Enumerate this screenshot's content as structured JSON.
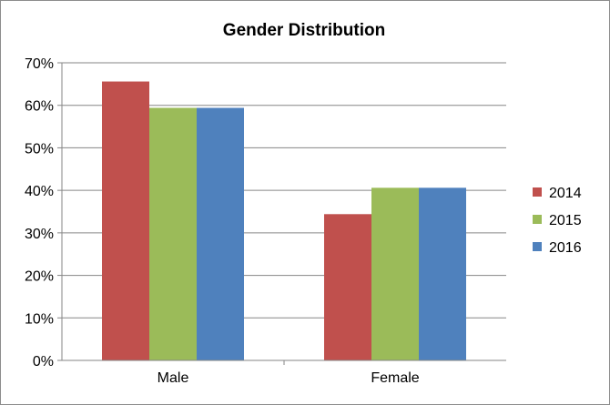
{
  "chart_data": {
    "type": "bar",
    "title": "Gender Distribution",
    "xlabel": "",
    "ylabel": "",
    "categories": [
      "Male",
      "Female"
    ],
    "series": [
      {
        "name": "2014",
        "values": [
          0.656,
          0.344
        ],
        "color": "#c0504d"
      },
      {
        "name": "2015",
        "values": [
          0.594,
          0.406
        ],
        "color": "#9bbb59"
      },
      {
        "name": "2016",
        "values": [
          0.594,
          0.406
        ],
        "color": "#4f81bd"
      }
    ],
    "ylim": [
      0,
      0.7
    ],
    "y_ticks": [
      0,
      0.1,
      0.2,
      0.3,
      0.4,
      0.5,
      0.6,
      0.7
    ],
    "y_tick_labels": [
      "0%",
      "10%",
      "20%",
      "30%",
      "40%",
      "50%",
      "60%",
      "70%"
    ],
    "grid": true,
    "legend_position": "right"
  }
}
